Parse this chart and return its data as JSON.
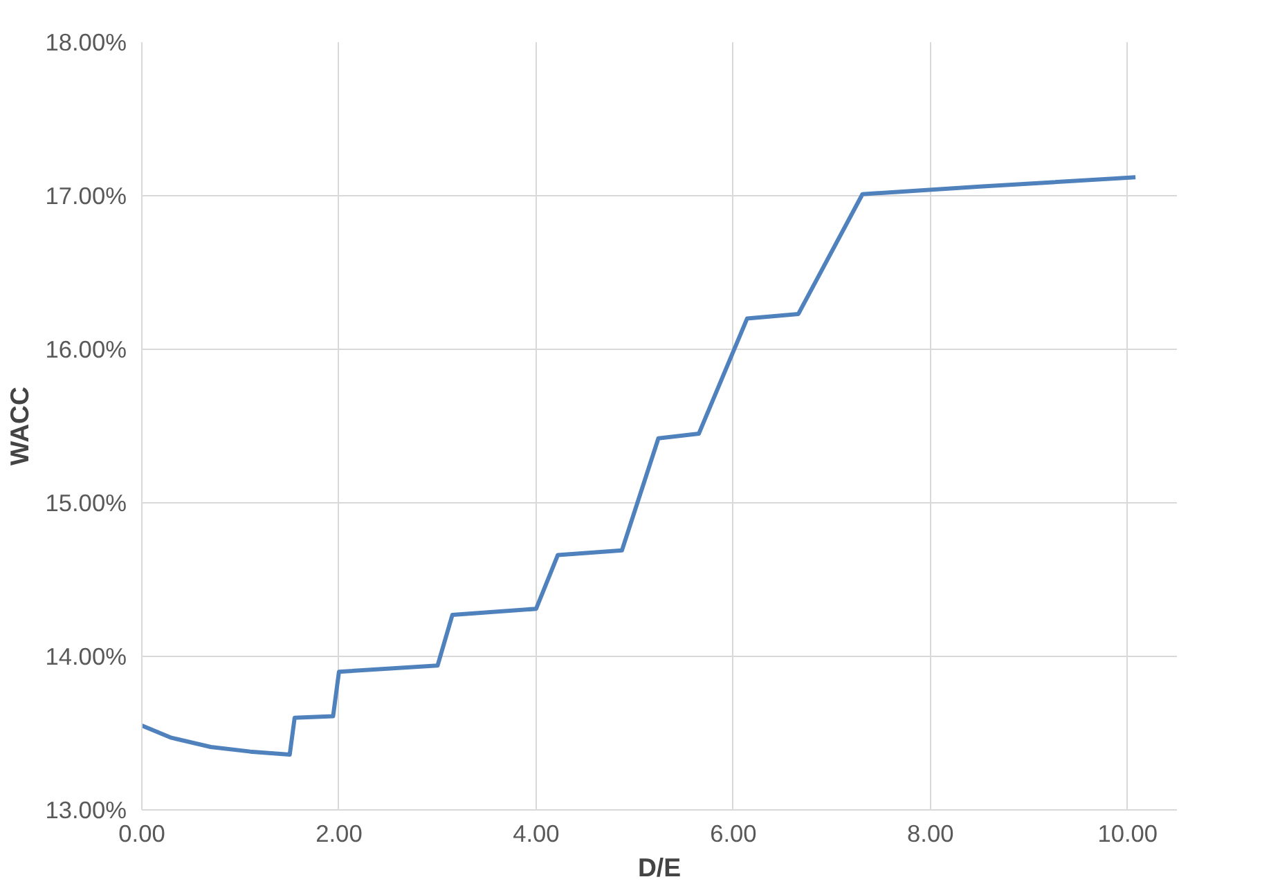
{
  "chart_data": {
    "type": "line",
    "xlabel": "D/E",
    "ylabel": "WACC",
    "x": [
      0,
      0.3,
      0.7,
      1.1,
      1.5,
      1.55,
      1.94,
      2.0,
      3.0,
      3.15,
      4.0,
      4.22,
      4.87,
      5.24,
      5.65,
      6.14,
      6.66,
      7.31,
      8.5,
      10.08
    ],
    "series": [
      {
        "color": "#4f81bd",
        "values": [
          13.55,
          13.47,
          13.41,
          13.38,
          13.36,
          13.6,
          13.61,
          13.9,
          13.94,
          14.27,
          14.31,
          14.66,
          14.69,
          15.42,
          15.45,
          16.2,
          16.23,
          17.01,
          17.06,
          17.12
        ]
      }
    ],
    "xlim": [
      0,
      10.5
    ],
    "ylim": [
      13,
      18
    ],
    "xticks": [
      {
        "value": 0,
        "label": "0.00"
      },
      {
        "value": 2,
        "label": "2.00"
      },
      {
        "value": 4,
        "label": "4.00"
      },
      {
        "value": 6,
        "label": "6.00"
      },
      {
        "value": 8,
        "label": "8.00"
      },
      {
        "value": 10,
        "label": "10.00"
      }
    ],
    "yticks": [
      {
        "value": 13,
        "label": "13.00%"
      },
      {
        "value": 14,
        "label": "14.00%"
      },
      {
        "value": 15,
        "label": "15.00%"
      },
      {
        "value": 16,
        "label": "16.00%"
      },
      {
        "value": 17,
        "label": "17.00%"
      },
      {
        "value": 18,
        "label": "18.00%"
      }
    ],
    "grid": true,
    "marker": "none",
    "line_style": "solid"
  }
}
